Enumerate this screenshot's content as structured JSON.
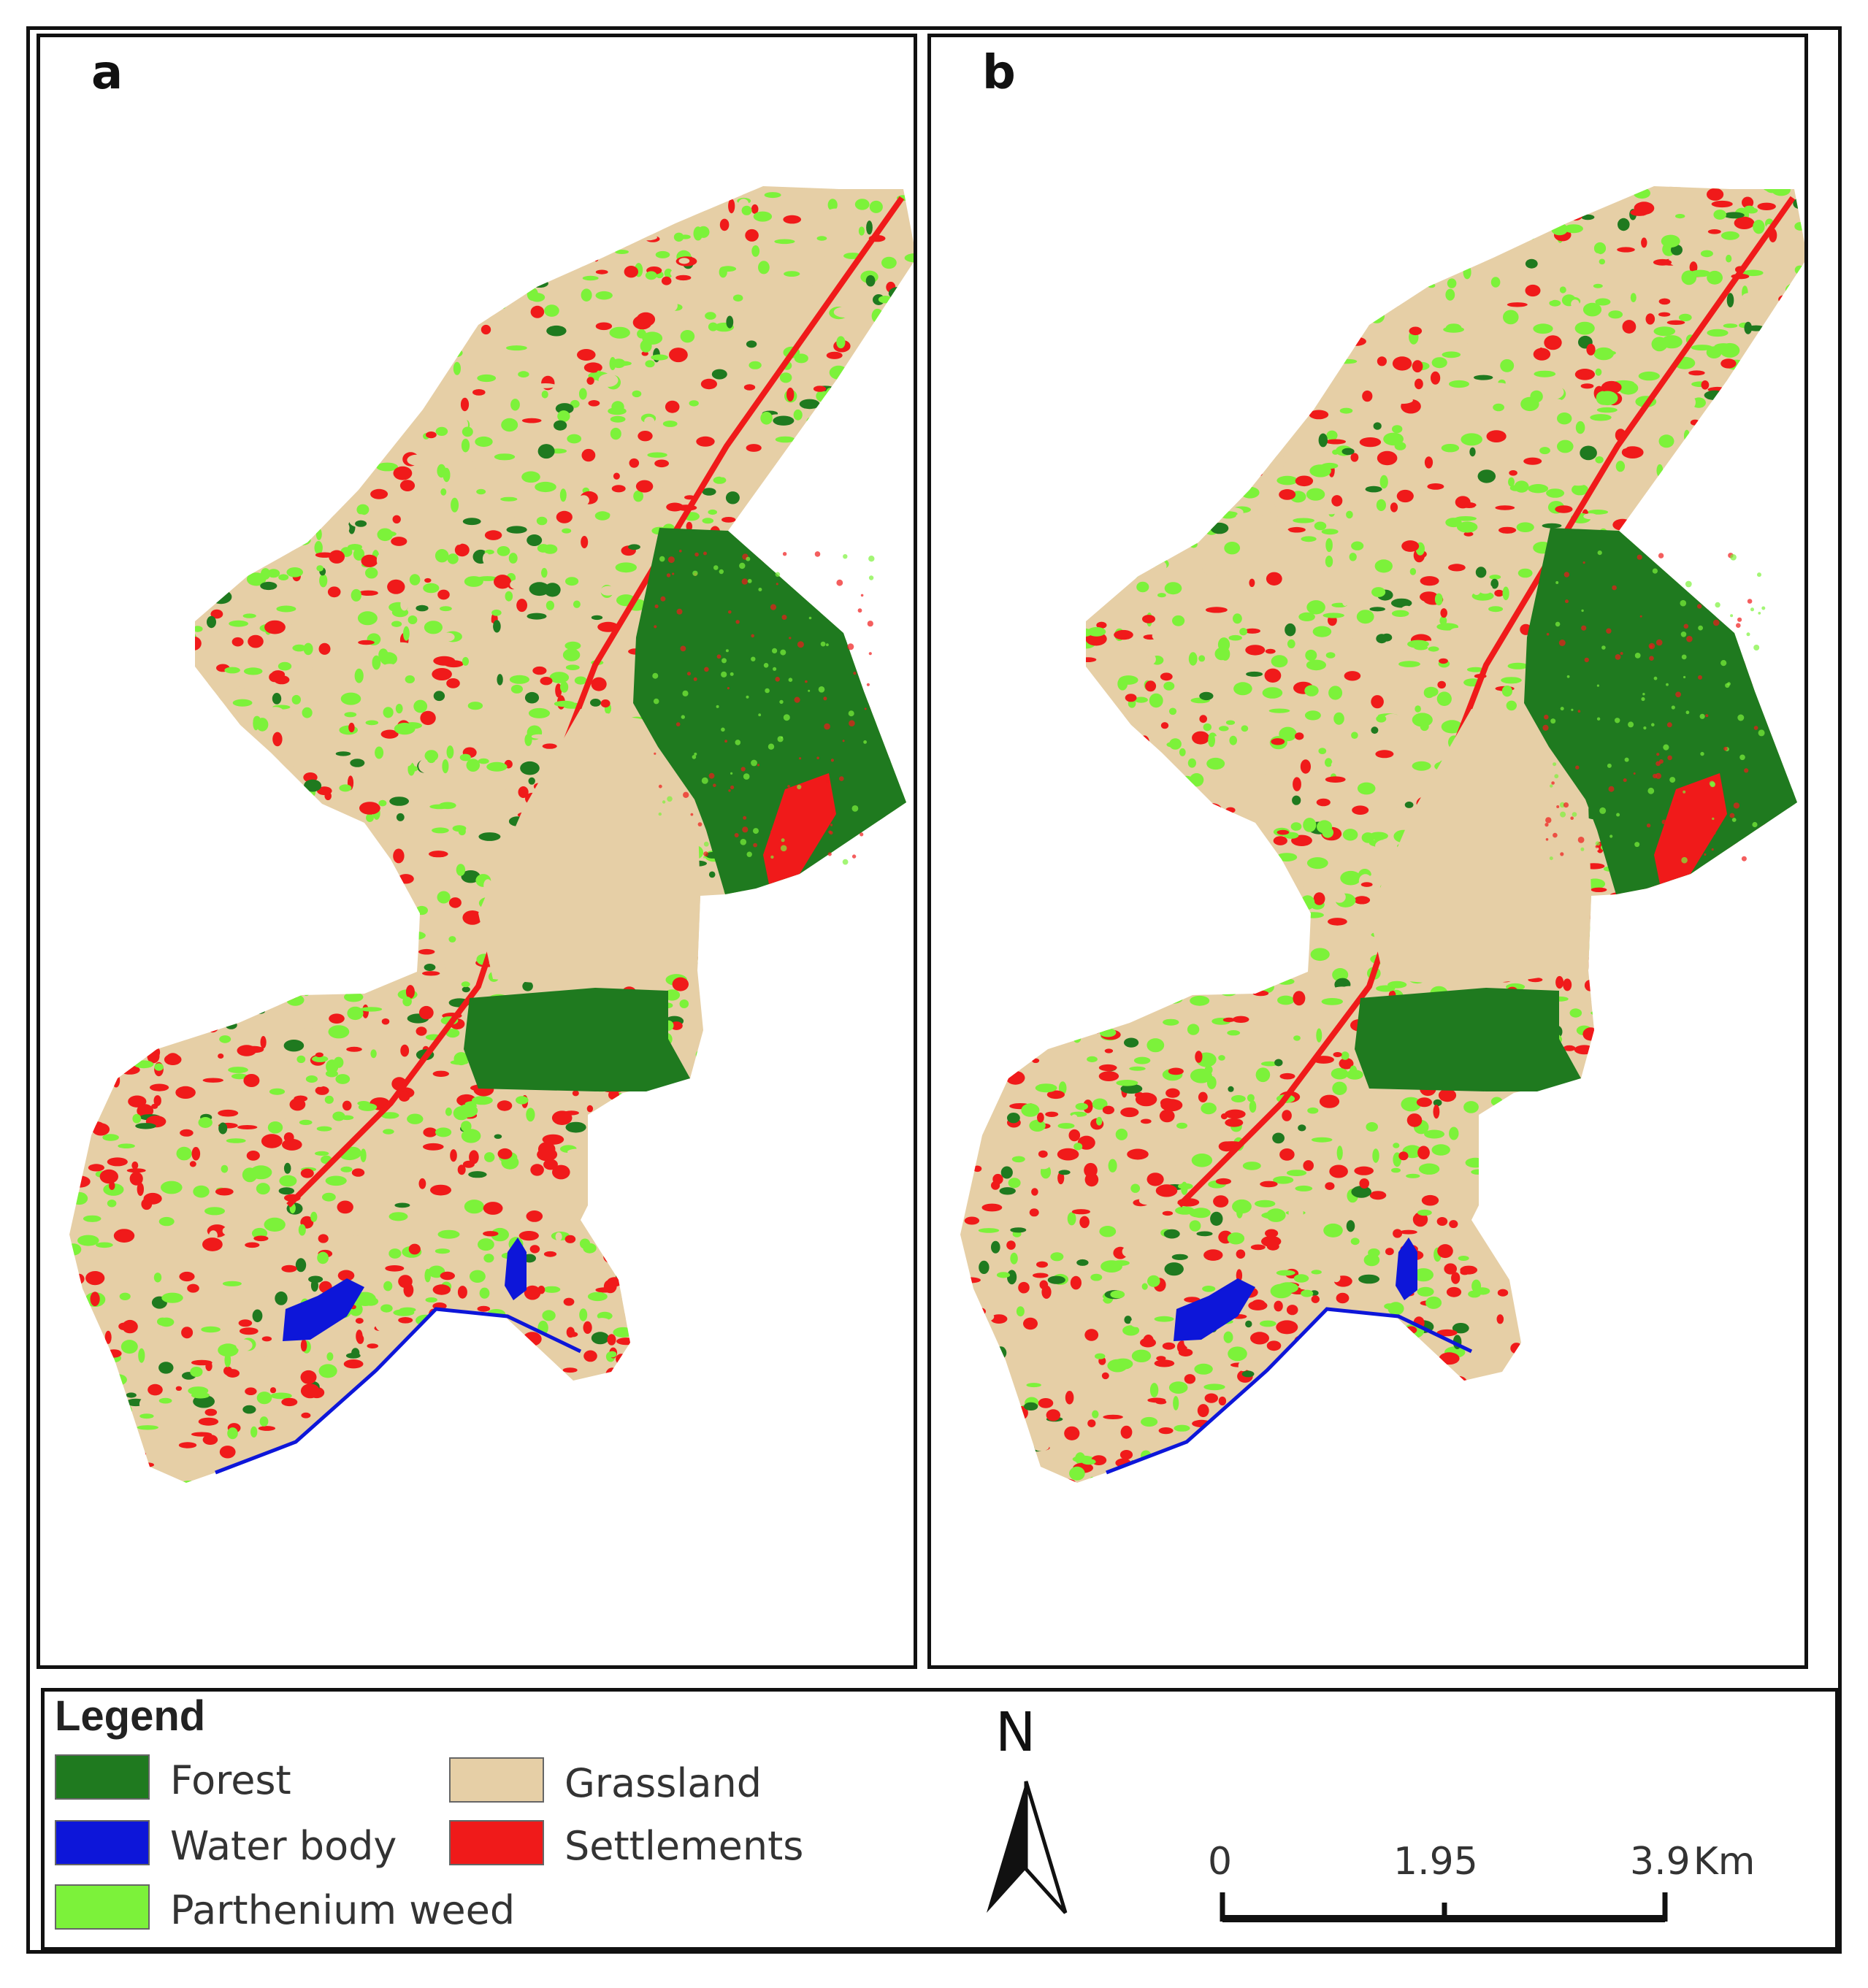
{
  "panels": [
    {
      "id": "a",
      "label": "a"
    },
    {
      "id": "b",
      "label": "b"
    }
  ],
  "legend": {
    "title": "Legend",
    "items": [
      {
        "label": "Forest",
        "color": "#1f7a1f"
      },
      {
        "label": "Water body",
        "color": "#0d16d9"
      },
      {
        "label": "Parthenium weed",
        "color": "#7cf23a"
      },
      {
        "label": "Grassland",
        "color": "#e6cfa6"
      },
      {
        "label": "Settlements",
        "color": "#f01a1a"
      }
    ]
  },
  "north_arrow": {
    "letter": "N"
  },
  "scale_bar": {
    "labels": [
      "0",
      "1.95",
      "3.9"
    ],
    "unit": "Km"
  }
}
